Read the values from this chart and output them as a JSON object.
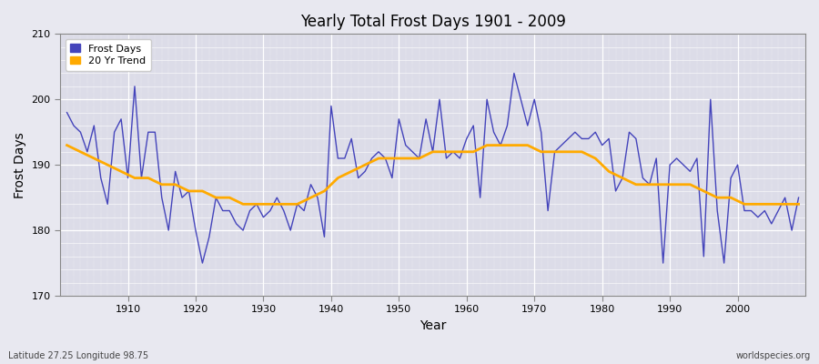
{
  "title": "Yearly Total Frost Days 1901 - 2009",
  "xlabel": "Year",
  "ylabel": "Frost Days",
  "subtitle": "Latitude 27.25 Longitude 98.75",
  "watermark": "worldspecies.org",
  "ylim": [
    170,
    210
  ],
  "xlim": [
    1901,
    2009
  ],
  "yticks": [
    170,
    180,
    190,
    200,
    210
  ],
  "xticks": [
    1910,
    1920,
    1930,
    1940,
    1950,
    1960,
    1970,
    1980,
    1990,
    2000
  ],
  "frost_days_color": "#4444bb",
  "trend_color": "#ffaa00",
  "fig_bg_color": "#e8e8f0",
  "plot_bg_color": "#dcdce8",
  "legend_frost": "Frost Days",
  "legend_trend": "20 Yr Trend",
  "years": [
    1901,
    1902,
    1903,
    1904,
    1905,
    1906,
    1907,
    1908,
    1909,
    1910,
    1911,
    1912,
    1913,
    1914,
    1915,
    1916,
    1917,
    1918,
    1919,
    1920,
    1921,
    1922,
    1923,
    1924,
    1925,
    1926,
    1927,
    1928,
    1929,
    1930,
    1931,
    1932,
    1933,
    1934,
    1935,
    1936,
    1937,
    1938,
    1939,
    1940,
    1941,
    1942,
    1943,
    1944,
    1945,
    1946,
    1947,
    1948,
    1949,
    1950,
    1951,
    1952,
    1953,
    1954,
    1955,
    1956,
    1957,
    1958,
    1959,
    1960,
    1961,
    1962,
    1963,
    1964,
    1965,
    1966,
    1967,
    1968,
    1969,
    1970,
    1971,
    1972,
    1973,
    1974,
    1975,
    1976,
    1977,
    1978,
    1979,
    1980,
    1981,
    1982,
    1983,
    1984,
    1985,
    1986,
    1987,
    1988,
    1989,
    1990,
    1991,
    1992,
    1993,
    1994,
    1995,
    1996,
    1997,
    1998,
    1999,
    2000,
    2001,
    2002,
    2003,
    2004,
    2005,
    2006,
    2007,
    2008,
    2009
  ],
  "frost_days": [
    198,
    196,
    195,
    192,
    196,
    188,
    184,
    195,
    197,
    188,
    202,
    188,
    195,
    195,
    185,
    180,
    189,
    185,
    186,
    180,
    175,
    179,
    185,
    183,
    183,
    181,
    180,
    183,
    184,
    182,
    183,
    185,
    183,
    180,
    184,
    183,
    187,
    185,
    179,
    199,
    191,
    191,
    194,
    188,
    189,
    191,
    192,
    191,
    188,
    197,
    193,
    192,
    191,
    197,
    192,
    200,
    191,
    192,
    191,
    194,
    196,
    185,
    200,
    195,
    193,
    196,
    204,
    200,
    196,
    200,
    195,
    183,
    192,
    193,
    194,
    195,
    194,
    194,
    195,
    193,
    194,
    186,
    188,
    195,
    194,
    188,
    187,
    191,
    175,
    190,
    191,
    190,
    189,
    191,
    176,
    200,
    183,
    175,
    188,
    190,
    183,
    183,
    182,
    183,
    181,
    183,
    185,
    180,
    185
  ],
  "trend_years": [
    1901,
    1903,
    1905,
    1907,
    1909,
    1911,
    1913,
    1915,
    1917,
    1919,
    1921,
    1923,
    1925,
    1927,
    1929,
    1931,
    1933,
    1935,
    1937,
    1939,
    1941,
    1943,
    1945,
    1947,
    1949,
    1951,
    1953,
    1955,
    1957,
    1959,
    1961,
    1963,
    1965,
    1967,
    1969,
    1971,
    1973,
    1975,
    1977,
    1979,
    1981,
    1983,
    1985,
    1987,
    1989,
    1991,
    1993,
    1995,
    1997,
    1999,
    2001,
    2003,
    2005,
    2007,
    2009
  ],
  "trend_values": [
    193,
    192,
    191,
    190,
    189,
    188,
    188,
    187,
    187,
    186,
    186,
    185,
    185,
    184,
    184,
    184,
    184,
    184,
    185,
    186,
    188,
    189,
    190,
    191,
    191,
    191,
    191,
    192,
    192,
    192,
    192,
    193,
    193,
    193,
    193,
    192,
    192,
    192,
    192,
    191,
    189,
    188,
    187,
    187,
    187,
    187,
    187,
    186,
    185,
    185,
    184,
    184,
    184,
    184,
    184
  ]
}
